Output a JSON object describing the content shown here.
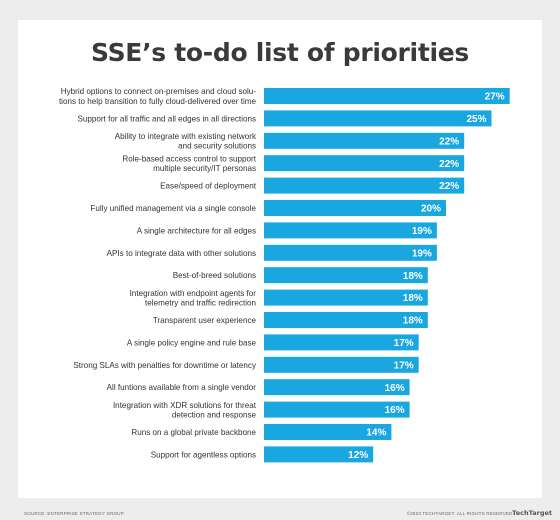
{
  "chart_data": {
    "type": "bar",
    "orientation": "horizontal",
    "title": "SSE’s to-do list of priorities",
    "categories": [
      [
        "Hybrid options to connect on-premises and cloud solu-",
        "tions to help transition to fully cloud-delivered over time"
      ],
      [
        "Support for all traffic and all edges in all directions"
      ],
      [
        "Ability to integrate with existing network",
        "and security solutions"
      ],
      [
        "Role-based access control to support",
        "multiple security/IT personas"
      ],
      [
        "Ease/speed of deployment"
      ],
      [
        "Fully unified management via a single console"
      ],
      [
        "A single architecture for all edges"
      ],
      [
        "APIs to integrate data with other solutions"
      ],
      [
        "Best-of-breed solutions"
      ],
      [
        "Integration with endpoint agents for",
        "telemetry and traffic redirection"
      ],
      [
        "Transparent user experience"
      ],
      [
        "A single policy engine and rule base"
      ],
      [
        "Strong SLAs with penalties for downtime or latency"
      ],
      [
        "All funtions available from a single vendor"
      ],
      [
        "Integration with XDR solutions for threat",
        "detection and response"
      ],
      [
        "Runs on a global private backbone"
      ],
      [
        "Support for agentless options"
      ]
    ],
    "values": [
      27,
      25,
      22,
      22,
      22,
      20,
      19,
      19,
      18,
      18,
      18,
      17,
      17,
      16,
      16,
      14,
      12
    ],
    "value_labels": [
      "27%",
      "25%",
      "22%",
      "22%",
      "22%",
      "20%",
      "19%",
      "19%",
      "18%",
      "18%",
      "18%",
      "17%",
      "17%",
      "16%",
      "16%",
      "14%",
      "12%"
    ],
    "bar_color": "#1aa7e0",
    "grid": false
  },
  "footer": {
    "source": "Source: Enterprise Strategy Group",
    "copyright": "©2023 TechTarget. All rights reserved.",
    "logo": "TechTarget"
  }
}
